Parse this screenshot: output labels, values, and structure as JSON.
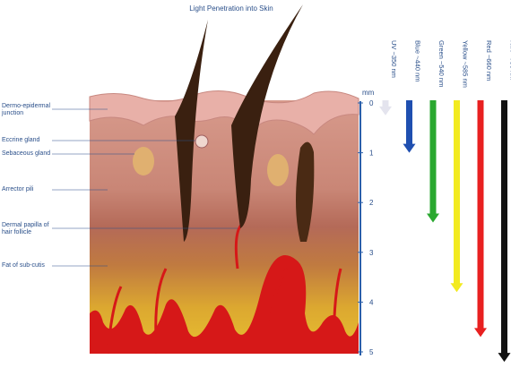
{
  "title": "Light Penetration into Skin",
  "axis": {
    "label": "mm",
    "ylim": [
      0,
      5
    ],
    "yticks": [
      0,
      1,
      2,
      3,
      4,
      5
    ]
  },
  "skin_labels": [
    "Dermo-epidermal junction",
    "Eccrine gland",
    "Sebaceous gland",
    "Arrector pili",
    "Dermal papilla of hair follicle",
    "Fat of sub-cutis"
  ],
  "wavelengths": [
    {
      "name": "UV ~350 nm",
      "color": "#e4e4ee",
      "depth": 0.25
    },
    {
      "name": "Blue ~440 nm",
      "color": "#1f4fb0",
      "depth": 1
    },
    {
      "name": "Green ~540 nm",
      "color": "#2aa830",
      "depth": 2.4
    },
    {
      "name": "Yellow ~585 nm",
      "color": "#f2ea20",
      "depth": 3.8
    },
    {
      "name": "Red ~660 nm",
      "color": "#e82020",
      "depth": 4.7
    },
    {
      "name": "NIR ~750 nm",
      "color": "#111111",
      "depth": 5.2
    }
  ]
}
